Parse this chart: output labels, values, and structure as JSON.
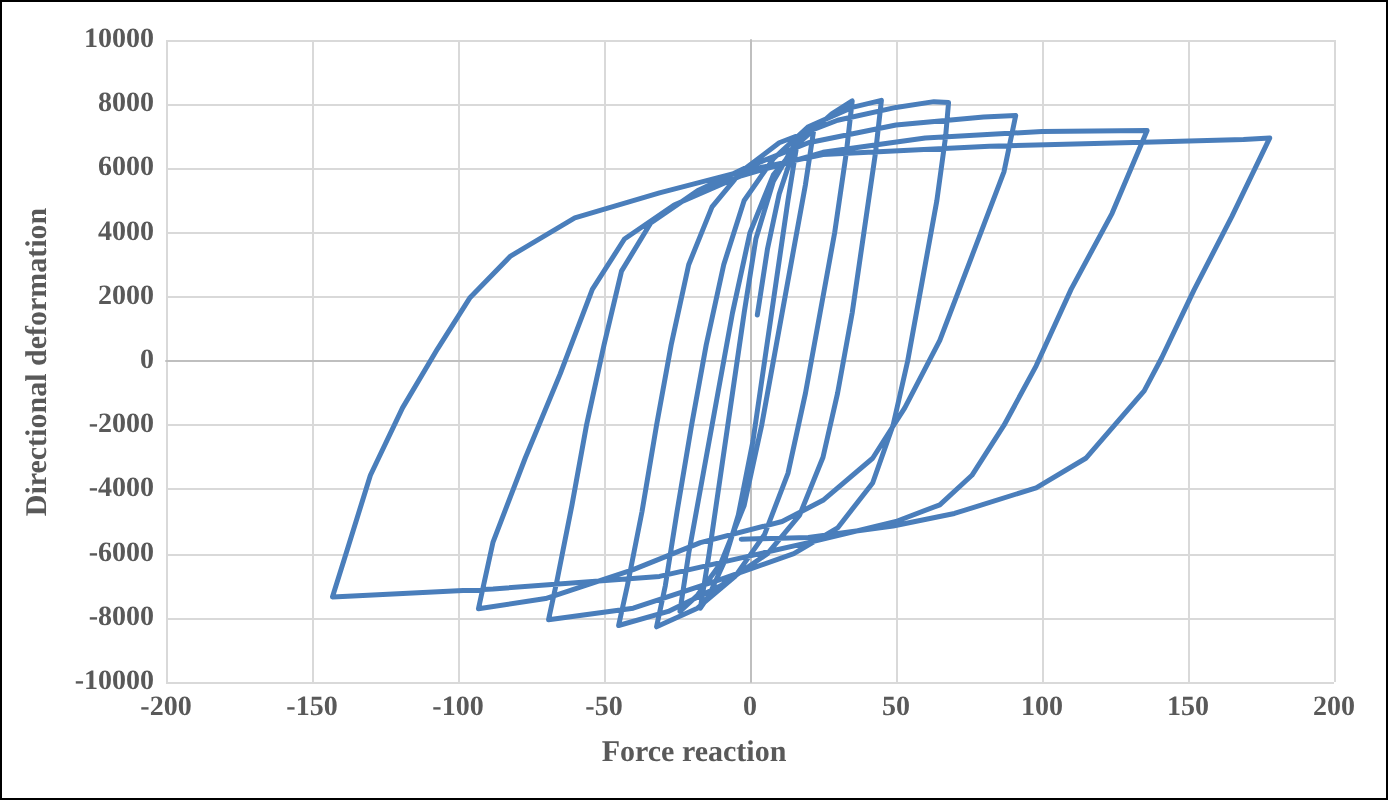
{
  "chart_data": {
    "type": "line",
    "xlabel": "Force reaction",
    "ylabel": "Directional deformation",
    "color": "#4a7ebb",
    "marker": "none",
    "line_style": "solid",
    "grid": true,
    "xlim": [
      -200,
      200
    ],
    "xticks": [
      -200,
      -150,
      -100,
      -50,
      0,
      50,
      100,
      150,
      200
    ],
    "ylim": [
      -10000,
      10000
    ],
    "yticks": [
      -10000,
      -8000,
      -6000,
      -4000,
      -2000,
      0,
      2000,
      4000,
      6000,
      8000,
      10000
    ],
    "x": [
      2.5,
      6,
      10,
      14,
      16,
      13,
      9,
      5,
      1,
      -4,
      -9,
      -14,
      -17,
      -14,
      -10,
      -6,
      -2,
      2,
      8,
      15,
      22,
      19,
      14,
      9,
      4,
      -2,
      -10,
      -18,
      -24,
      -21,
      -16,
      -11,
      -6,
      0,
      8,
      18,
      28,
      35,
      33,
      29,
      24,
      19,
      13,
      5,
      -5,
      -18,
      -32,
      -29,
      -25,
      -20,
      -15,
      -9,
      -2,
      8,
      20,
      35,
      45,
      43,
      39,
      35,
      30,
      25,
      17,
      6,
      -10,
      -28,
      -45,
      -42,
      -37,
      -32,
      -27,
      -21,
      -13,
      -3,
      10,
      30,
      50,
      63,
      68,
      67,
      64,
      59,
      54,
      49,
      42,
      30,
      15,
      -10,
      -40,
      -69,
      -66,
      -61,
      -56,
      -50,
      -44,
      -34,
      -18,
      -2,
      20,
      50,
      80,
      91,
      87,
      76,
      65,
      53,
      42,
      25,
      11,
      -17,
      -40,
      -70,
      -93,
      -88,
      -77,
      -65,
      -54,
      -43,
      -26,
      -3,
      25,
      60,
      100,
      136,
      124,
      110,
      98,
      87,
      76,
      65,
      50,
      20,
      -31,
      -88,
      -136,
      -143,
      -139,
      -130,
      -119,
      -107,
      -96,
      -82,
      -60,
      -31,
      -3,
      25,
      82,
      138,
      169,
      178,
      165,
      152,
      141,
      135,
      115,
      98,
      70,
      49,
      20,
      -3
    ],
    "values": [
      1430,
      3500,
      5200,
      6300,
      6700,
      5000,
      2500,
      0,
      -2500,
      -4800,
      -6300,
      -7300,
      -7700,
      -6000,
      -3500,
      -1000,
      1500,
      3800,
      5600,
      6700,
      7300,
      5500,
      3000,
      500,
      -2000,
      -4500,
      -6300,
      -7300,
      -7800,
      -6000,
      -3500,
      -1000,
      1500,
      4000,
      5800,
      6900,
      7700,
      8100,
      6500,
      4000,
      1500,
      -1000,
      -3500,
      -5400,
      -6700,
      -7700,
      -8280,
      -7000,
      -4700,
      -2000,
      500,
      3000,
      5000,
      6300,
      7300,
      7900,
      8120,
      6500,
      4000,
      1500,
      -1000,
      -3000,
      -4800,
      -6000,
      -7000,
      -7800,
      -8240,
      -7000,
      -4700,
      -2000,
      500,
      3000,
      4800,
      5900,
      6800,
      7500,
      7900,
      8080,
      8050,
      7000,
      5000,
      2500,
      0,
      -2000,
      -3800,
      -5200,
      -6000,
      -6800,
      -7700,
      -8060,
      -6800,
      -4500,
      -2000,
      500,
      2800,
      4300,
      5300,
      6000,
      6800,
      7350,
      7600,
      7650,
      5900,
      3270,
      640,
      -1460,
      -3030,
      -4340,
      -5000,
      -5660,
      -6500,
      -7400,
      -7720,
      -5640,
      -3030,
      -400,
      2230,
      3800,
      4860,
      5770,
      6500,
      6950,
      7150,
      7180,
      4600,
      2240,
      -150,
      -2000,
      -3560,
      -4480,
      -5000,
      -5660,
      -6710,
      -7100,
      -7320,
      -7350,
      -6190,
      -3560,
      -1460,
      380,
      1960,
      3270,
      4460,
      5240,
      5900,
      6430,
      6690,
      6820,
      6900,
      6950,
      4500,
      2200,
      100,
      -930,
      -3030,
      -3950,
      -4750,
      -5140,
      -5500,
      -5550
    ]
  }
}
